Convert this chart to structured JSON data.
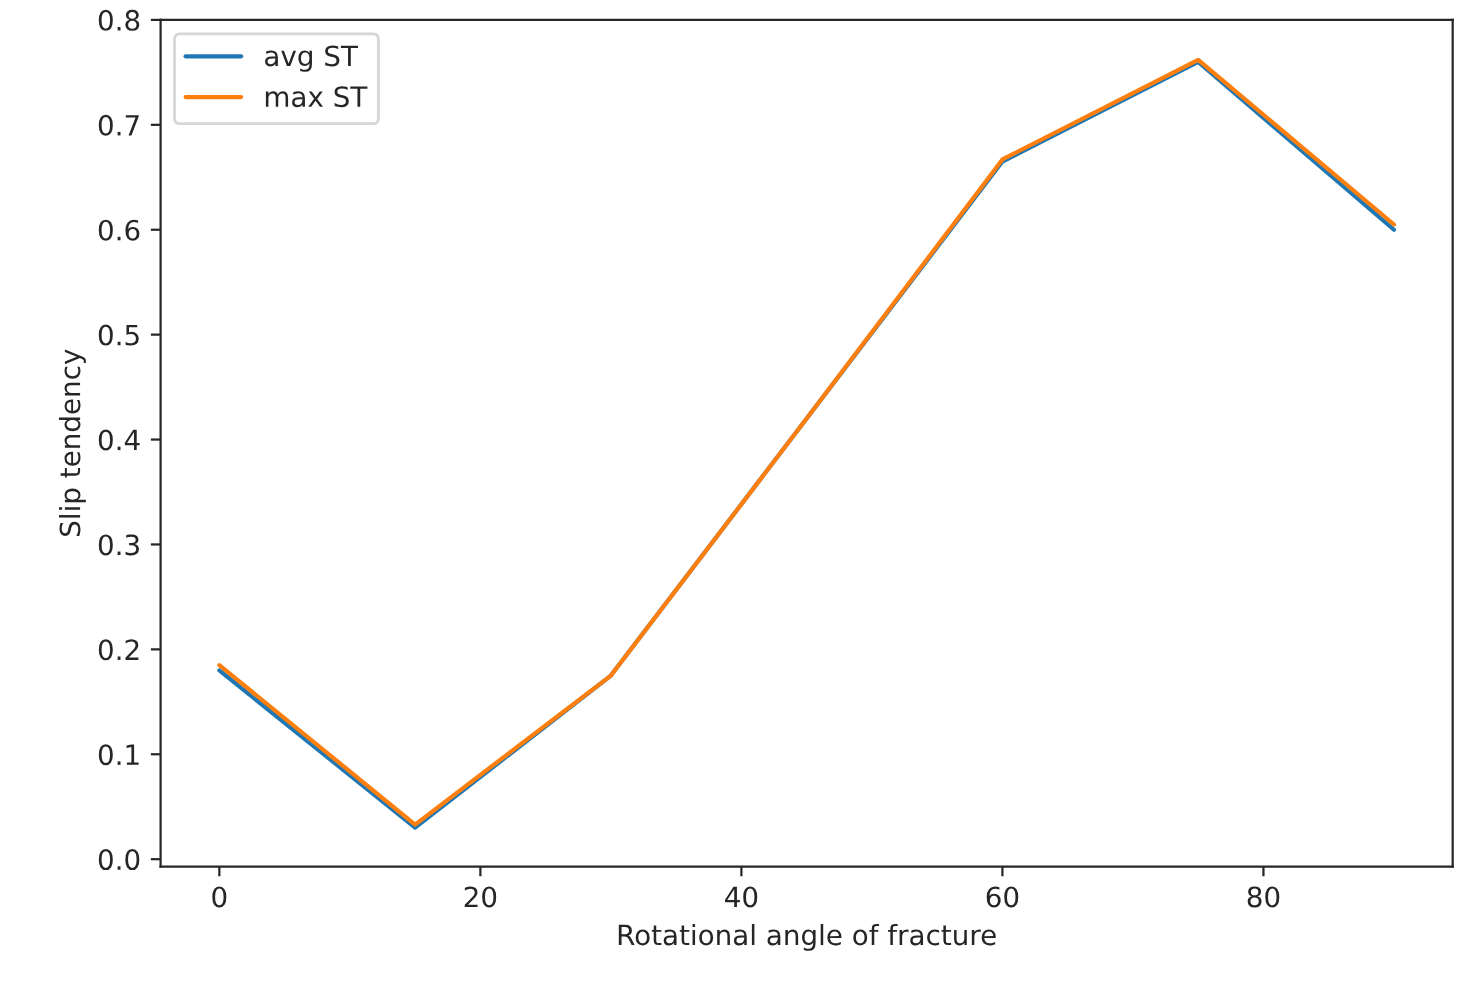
{
  "chart_data": {
    "type": "line",
    "xlabel": "Rotational angle of fracture",
    "ylabel": "Slip tendency",
    "x": [
      0,
      15,
      30,
      45,
      60,
      75,
      90
    ],
    "series": [
      {
        "name": "avg ST",
        "color": "#1f77b4",
        "values": [
          0.18,
          0.03,
          0.175,
          0.42,
          0.665,
          0.76,
          0.6
        ]
      },
      {
        "name": "max ST",
        "color": "#ff7f0e",
        "values": [
          0.185,
          0.033,
          0.175,
          0.42,
          0.667,
          0.762,
          0.605
        ]
      }
    ],
    "xlim": [
      -4.5,
      94.5
    ],
    "xticks": [
      0,
      20,
      40,
      60,
      80
    ],
    "ylim": [
      -0.007,
      0.8
    ],
    "yticks": [
      {
        "value": 0,
        "label": "0.0"
      },
      0.1,
      0.2,
      0.3,
      0.4,
      0.5,
      0.6,
      0.7,
      0.8
    ],
    "legend": "top left",
    "grid": false
  }
}
